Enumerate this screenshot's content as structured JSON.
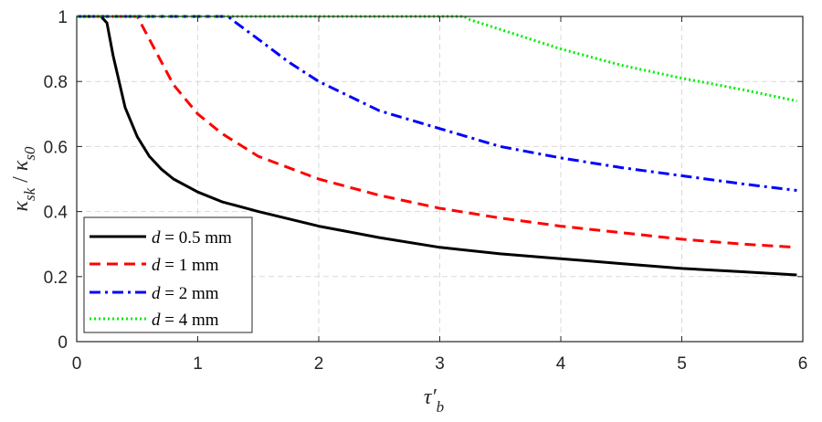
{
  "chart_data": {
    "type": "line",
    "xlabel": "τ′b",
    "ylabel": "κsk / κs0",
    "xlim": [
      0,
      6
    ],
    "ylim": [
      0,
      1
    ],
    "xticks": [
      "0",
      "1",
      "2",
      "3",
      "4",
      "5",
      "6"
    ],
    "yticks": [
      "0",
      "0.2",
      "0.4",
      "0.6",
      "0.8",
      "1"
    ],
    "grid": true,
    "legend_position": "bottom-left",
    "series": [
      {
        "name": "d = 0.5 mm",
        "color": "#000000",
        "dash": "solid",
        "x": [
          0,
          0.2,
          0.25,
          0.3,
          0.4,
          0.5,
          0.6,
          0.7,
          0.8,
          1.0,
          1.2,
          1.5,
          2.0,
          2.5,
          3.0,
          3.5,
          4.0,
          4.5,
          5.0,
          5.5,
          5.95
        ],
        "y": [
          1,
          1,
          0.98,
          0.88,
          0.72,
          0.63,
          0.57,
          0.53,
          0.5,
          0.46,
          0.43,
          0.4,
          0.355,
          0.32,
          0.29,
          0.27,
          0.255,
          0.24,
          0.225,
          0.215,
          0.205
        ]
      },
      {
        "name": "d = 1 mm",
        "color": "#ff0000",
        "dash": "dashed",
        "x": [
          0,
          0.5,
          0.6,
          0.8,
          1.0,
          1.2,
          1.5,
          2.0,
          2.5,
          3.0,
          3.5,
          4.0,
          4.5,
          5.0,
          5.5,
          5.95
        ],
        "y": [
          1,
          1,
          0.93,
          0.79,
          0.7,
          0.64,
          0.57,
          0.5,
          0.45,
          0.41,
          0.38,
          0.355,
          0.335,
          0.315,
          0.3,
          0.29
        ]
      },
      {
        "name": "d = 2 mm",
        "color": "#0000ff",
        "dash": "dash-dot",
        "x": [
          0,
          1.25,
          1.3,
          1.5,
          1.75,
          2.0,
          2.5,
          3.0,
          3.5,
          4.0,
          4.5,
          5.0,
          5.5,
          5.95
        ],
        "y": [
          1,
          1,
          0.985,
          0.93,
          0.86,
          0.8,
          0.71,
          0.655,
          0.6,
          0.565,
          0.535,
          0.51,
          0.485,
          0.465
        ]
      },
      {
        "name": "d = 4 mm",
        "color": "#00ee00",
        "dash": "dotted",
        "x": [
          0,
          3.2,
          3.25,
          3.5,
          4.0,
          4.5,
          5.0,
          5.5,
          5.95
        ],
        "y": [
          1,
          1,
          0.99,
          0.96,
          0.9,
          0.85,
          0.81,
          0.775,
          0.74
        ]
      }
    ]
  },
  "legend": [
    {
      "var": "d",
      "rest": " = 0.5 mm"
    },
    {
      "var": "d",
      "rest": " = 1 mm"
    },
    {
      "var": "d",
      "rest": " = 2 mm"
    },
    {
      "var": "d",
      "rest": " = 4 mm"
    }
  ],
  "axis_text": {
    "x_main": "τ′",
    "x_sub": "b",
    "y_k1": "κ",
    "y_sub1": "sk",
    "y_slash": " / ",
    "y_k2": "κ",
    "y_sub2": "s0"
  }
}
